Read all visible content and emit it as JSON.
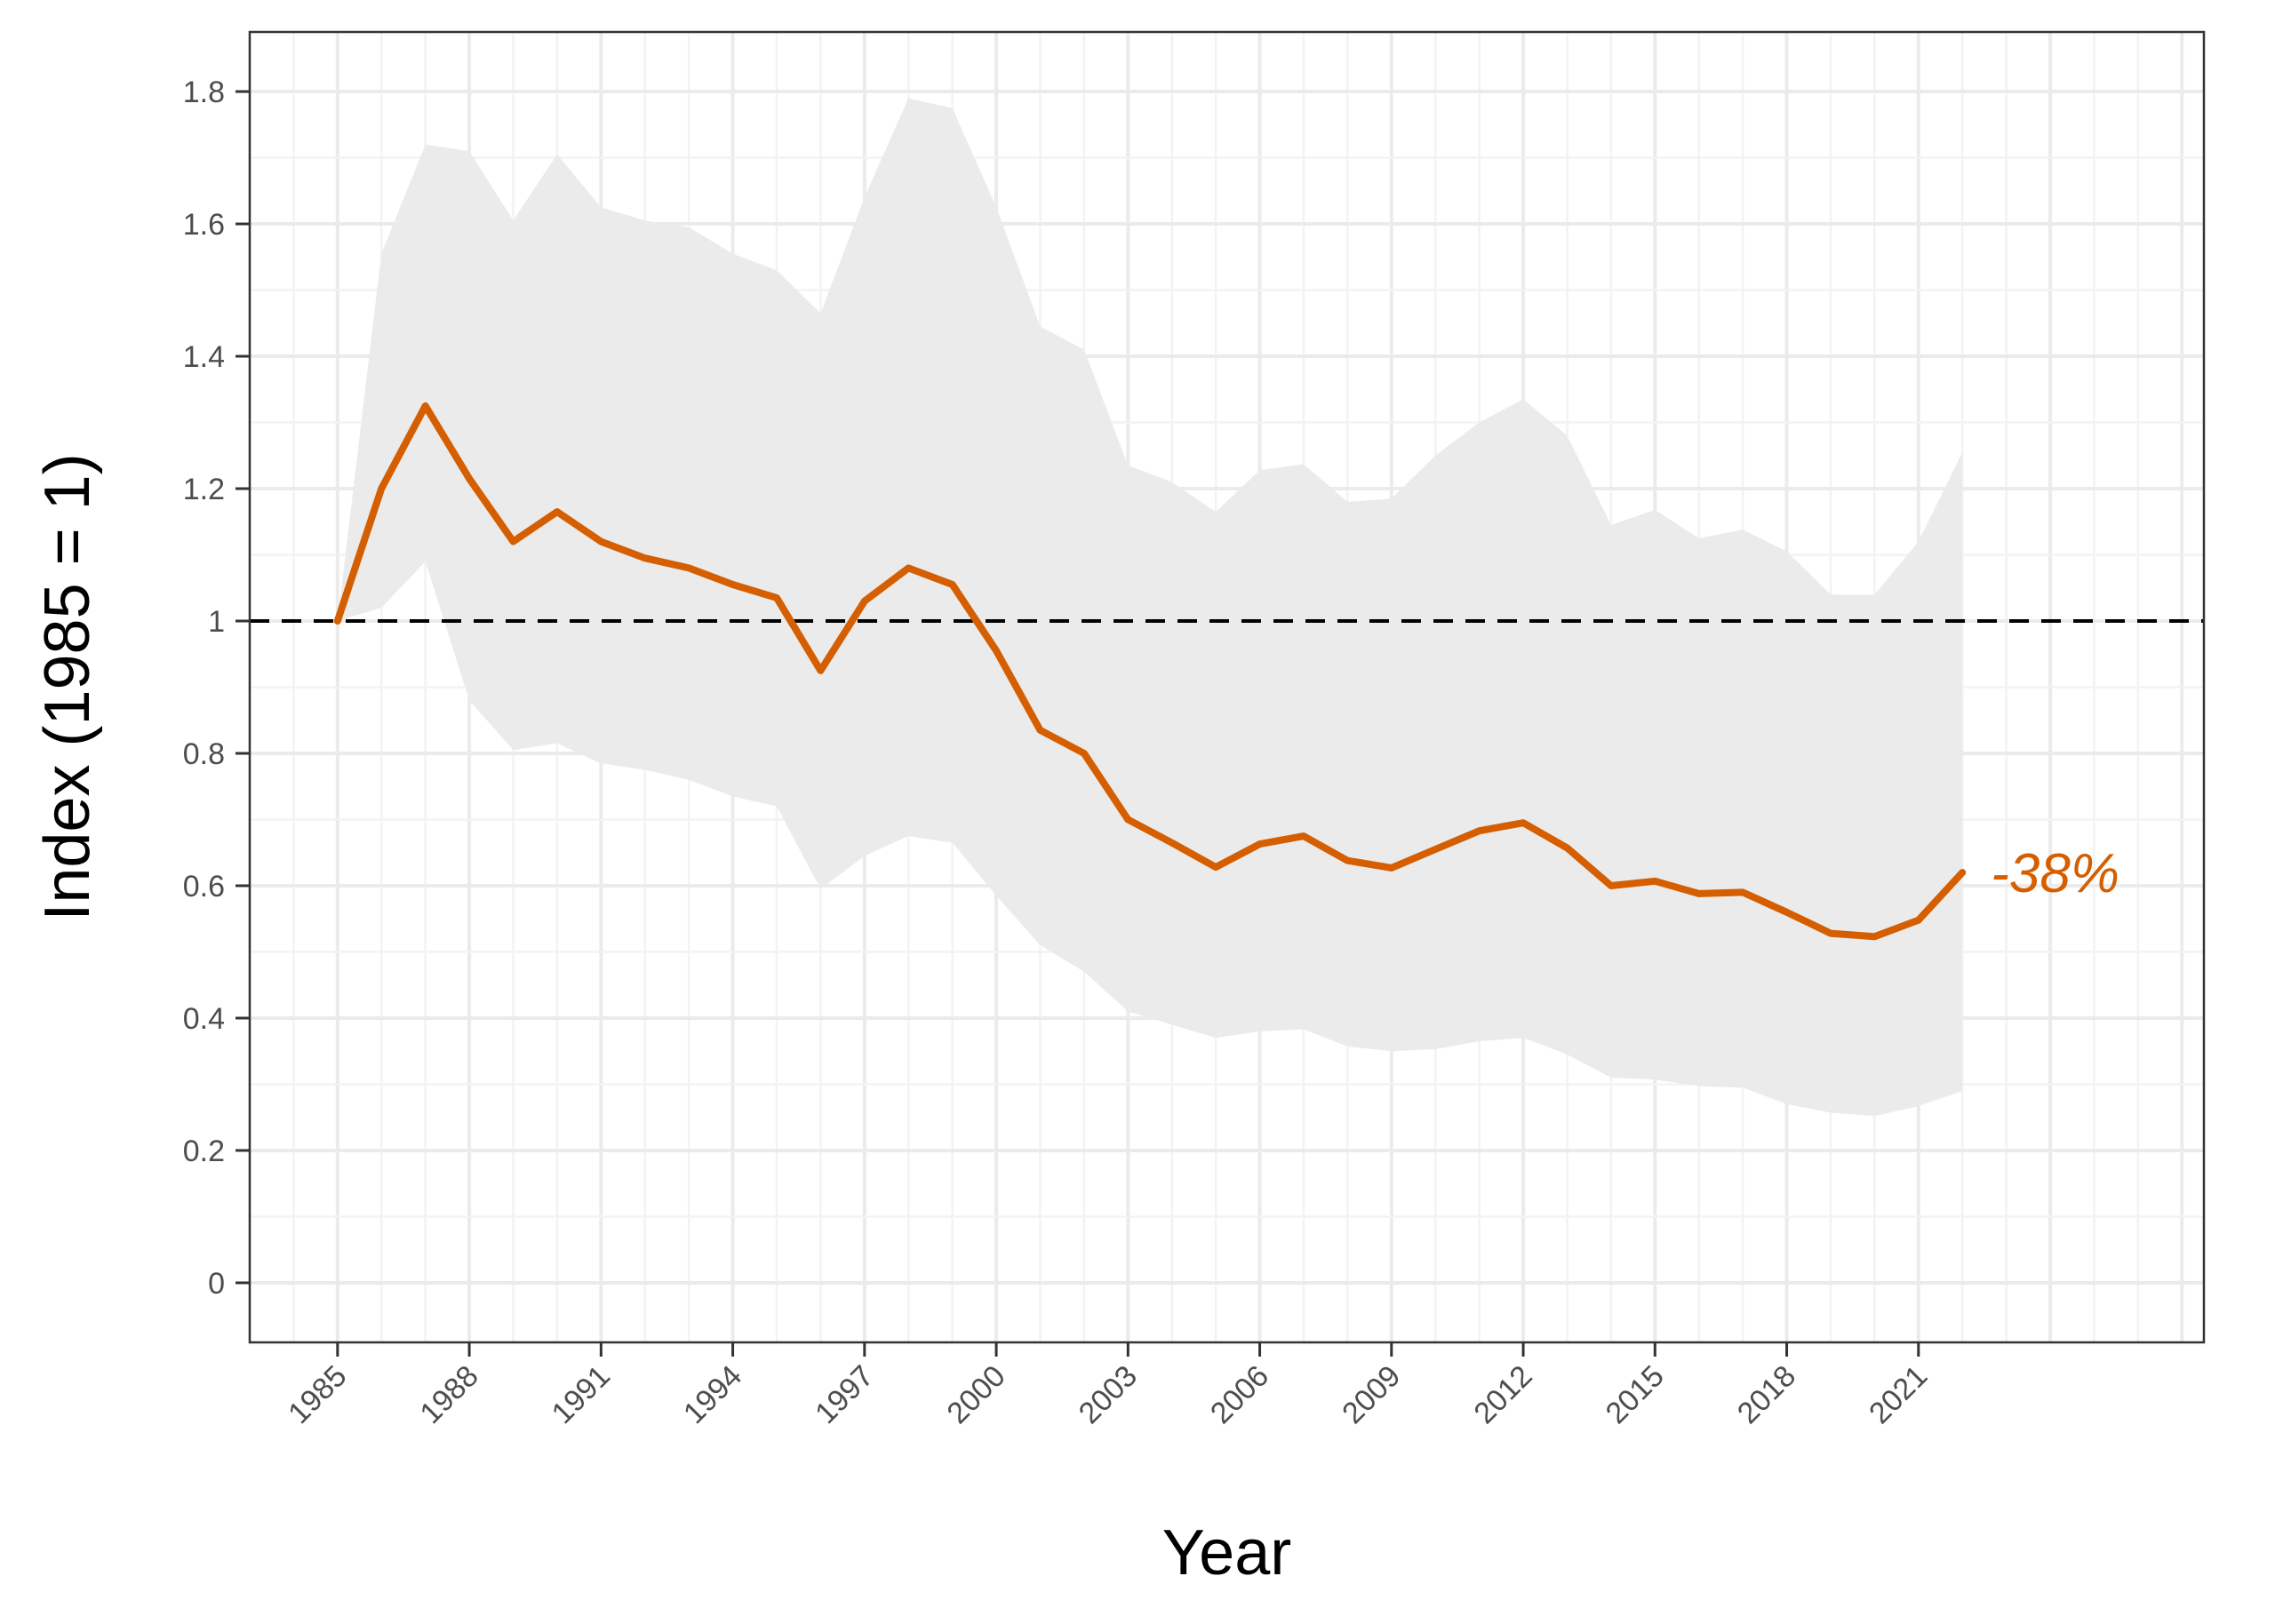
{
  "chart_data": {
    "type": "line",
    "title": "",
    "xlabel": "Year",
    "ylabel": "Index (1985 = 1)",
    "xlim": [
      1983,
      2027.5
    ],
    "ylim": [
      -0.09,
      1.89
    ],
    "x_ticks": [
      1985,
      1988,
      1991,
      1994,
      1997,
      2000,
      2003,
      2006,
      2009,
      2012,
      2015,
      2018,
      2021
    ],
    "x_tick_labels": [
      "1985",
      "1988",
      "1991",
      "1994",
      "1997",
      "2000",
      "2003",
      "2006",
      "2009",
      "2012",
      "2015",
      "2018",
      "2021"
    ],
    "y_ticks": [
      0,
      0.2,
      0.4,
      0.6,
      0.8,
      1.0,
      1.2,
      1.4,
      1.6,
      1.8
    ],
    "y_tick_labels": [
      "0",
      "0.2",
      "0.4",
      "0.6",
      "0.8",
      "1",
      "1.2",
      "1.4",
      "1.6",
      "1.8"
    ],
    "reference_line": {
      "y": 1.0,
      "style": "dashed"
    },
    "grid": true,
    "series": [
      {
        "name": "Index",
        "color": "#D55E00",
        "x": [
          1985,
          1986,
          1987,
          1988,
          1989,
          1990,
          1991,
          1992,
          1993,
          1994,
          1995,
          1996,
          1997,
          1998,
          1999,
          2000,
          2001,
          2002,
          2003,
          2004,
          2005,
          2006,
          2007,
          2008,
          2009,
          2010,
          2011,
          2012,
          2013,
          2014,
          2015,
          2016,
          2017,
          2018,
          2019,
          2020,
          2021,
          2022
        ],
        "values": [
          1.0,
          1.2,
          1.325,
          1.215,
          1.12,
          1.165,
          1.12,
          1.095,
          1.08,
          1.055,
          1.035,
          0.925,
          1.03,
          1.08,
          1.055,
          0.955,
          0.835,
          0.8,
          0.7,
          0.665,
          0.628,
          0.663,
          0.675,
          0.638,
          0.627,
          0.655,
          0.683,
          0.695,
          0.657,
          0.6,
          0.607,
          0.588,
          0.59,
          0.56,
          0.528,
          0.523,
          0.548,
          0.62
        ],
        "lower": [
          1.0,
          1.02,
          1.09,
          0.88,
          0.805,
          0.815,
          0.785,
          0.775,
          0.76,
          0.735,
          0.72,
          0.595,
          0.645,
          0.675,
          0.665,
          0.585,
          0.51,
          0.47,
          0.41,
          0.39,
          0.37,
          0.38,
          0.383,
          0.357,
          0.35,
          0.353,
          0.365,
          0.37,
          0.345,
          0.31,
          0.307,
          0.297,
          0.295,
          0.27,
          0.257,
          0.252,
          0.267,
          0.29
        ],
        "upper": [
          1.0,
          1.555,
          1.72,
          1.71,
          1.605,
          1.705,
          1.625,
          1.605,
          1.595,
          1.555,
          1.53,
          1.465,
          1.64,
          1.79,
          1.775,
          1.625,
          1.445,
          1.41,
          1.235,
          1.21,
          1.165,
          1.228,
          1.237,
          1.18,
          1.185,
          1.25,
          1.3,
          1.335,
          1.28,
          1.145,
          1.168,
          1.125,
          1.138,
          1.105,
          1.04,
          1.04,
          1.12,
          1.255
        ]
      }
    ],
    "annotations": [
      {
        "text": "-38%",
        "x": 2022,
        "y": 0.62,
        "color": "#D55E00"
      }
    ],
    "band_color": "#EBEBEB"
  }
}
